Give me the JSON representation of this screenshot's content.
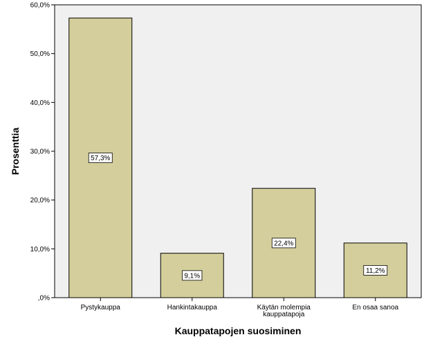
{
  "chart_data": {
    "type": "bar",
    "categories": [
      [
        "Pystykauppa"
      ],
      [
        "Hankintakauppa"
      ],
      [
        "Käytän molempia",
        "kauppatapoja"
      ],
      [
        "En osaa sanoa"
      ]
    ],
    "values": [
      57.3,
      9.1,
      22.4,
      11.2
    ],
    "data_labels": [
      "57,3%",
      "9,1%",
      "22,4%",
      "11,2%"
    ],
    "xlabel": "Kauppatapojen suosiminen",
    "ylabel": "Prosenttia",
    "ylim": [
      0,
      60
    ],
    "yticks": [
      0,
      10,
      20,
      30,
      40,
      50,
      60
    ],
    "ytick_labels": [
      ",0%",
      "10,0%",
      "20,0%",
      "30,0%",
      "40,0%",
      "50,0%",
      "60,0%"
    ],
    "grid": false,
    "colors": {
      "bar_fill": "#d3ce9b",
      "bar_stroke": "#000000",
      "plot_bg": "#f0f0f0",
      "axis": "#000000"
    }
  }
}
